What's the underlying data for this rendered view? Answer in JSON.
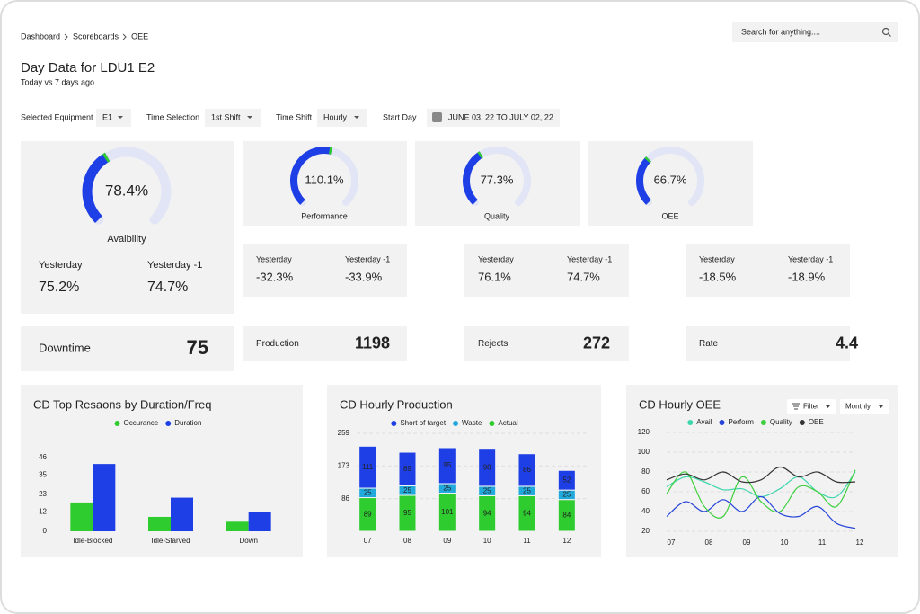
{
  "breadcrumb": [
    "Dashboard",
    "Scoreboards",
    "OEE"
  ],
  "search_placeholder": "Search for anything....",
  "title": "Day Data for LDU1 E2",
  "subtitle": "Today vs 7 days ago",
  "filters": [
    {
      "label": "Selected Equipment",
      "value": "E1"
    },
    {
      "label": "Time Selection",
      "value": "1st Shift"
    },
    {
      "label": "Time Shift",
      "value": "Hourly"
    },
    {
      "label": "Start Day",
      "value": "JUNE 03, 22 TO JULY 02, 22"
    }
  ],
  "gauges": [
    {
      "name": "Avaibility",
      "value": 78.4,
      "value_label": "78.4%",
      "comparison": [
        {
          "label": "Yesterday",
          "value": "75.2%"
        },
        {
          "label": "Yesterday -1",
          "value": "74.7%"
        }
      ]
    },
    {
      "name": "Performance",
      "value": 110.1,
      "value_label": "110.1%",
      "comparison": [
        {
          "label": "Yesterday",
          "value": "-32.3%"
        },
        {
          "label": "Yesterday -1",
          "value": "-33.9%"
        }
      ]
    },
    {
      "name": "Quality",
      "value": 77.3,
      "value_label": "77.3%",
      "comparison": [
        {
          "label": "Yesterday",
          "value": "76.1%"
        },
        {
          "label": "Yesterday -1",
          "value": "74.7%"
        }
      ]
    },
    {
      "name": "OEE",
      "value": 66.7,
      "value_label": "66.7%",
      "comparison": [
        {
          "label": "Yesterday",
          "value": "-18.5%"
        },
        {
          "label": "Yesterday -1",
          "value": "-18.9%"
        }
      ]
    }
  ],
  "kpis": [
    {
      "label": "Downtime",
      "value": 75
    },
    {
      "label": "Production",
      "value": 1198
    },
    {
      "label": "Rejects",
      "value": 272
    },
    {
      "label": "Rate",
      "value": 4.4
    }
  ],
  "chart_data": [
    {
      "type": "bar",
      "title": "CD Top Resaons by Duration/Freq",
      "categories": [
        "Idle-Blocked",
        "Idle-Starved",
        "Down"
      ],
      "series": [
        {
          "name": "Occurance",
          "color": "#2ecc2e",
          "values": [
            18,
            9,
            6
          ]
        },
        {
          "name": "Duration",
          "color": "#1f3fe6",
          "values": [
            42,
            21,
            12
          ]
        }
      ],
      "ylim": [
        0,
        46
      ],
      "yticks": [
        0,
        12,
        23,
        35,
        46
      ],
      "grid": false
    },
    {
      "type": "stacked_bar",
      "title": "CD Hourly Production",
      "categories": [
        "07",
        "08",
        "09",
        "10",
        "11",
        "12"
      ],
      "series": [
        {
          "name": "Short of target",
          "color": "#1f3fe6",
          "values": [
            111,
            89,
            95,
            98,
            86,
            52
          ]
        },
        {
          "name": "Waste",
          "color": "#22a9dc",
          "values": [
            25,
            25,
            25,
            25,
            25,
            25
          ]
        },
        {
          "name": "Actual",
          "color": "#2ecc2e",
          "values": [
            89,
            95,
            101,
            94,
            94,
            84
          ]
        }
      ],
      "ylim": [
        0,
        259
      ],
      "yticks": [
        86,
        173,
        259
      ],
      "grid": true
    },
    {
      "type": "line",
      "title": "CD Hourly OEE",
      "controls": [
        "Filter",
        "Monthly"
      ],
      "categories": [
        "07",
        null,
        "08",
        null,
        "09",
        null,
        "10",
        null,
        "11",
        null,
        "12"
      ],
      "series": [
        {
          "name": "Avail",
          "color": "#3fd6ad",
          "values": [
            65,
            75,
            70,
            62,
            63,
            55,
            63,
            75,
            60,
            55,
            80
          ]
        },
        {
          "name": "Perform",
          "color": "#2445d8",
          "values": [
            35,
            50,
            40,
            52,
            40,
            55,
            38,
            35,
            45,
            28,
            23
          ]
        },
        {
          "name": "Quality",
          "color": "#3ccf3c",
          "values": [
            58,
            80,
            45,
            35,
            75,
            50,
            40,
            65,
            60,
            45,
            82
          ]
        },
        {
          "name": "OEE",
          "color": "#333333",
          "values": [
            72,
            78,
            72,
            80,
            70,
            72,
            85,
            75,
            80,
            70,
            70
          ]
        }
      ],
      "ylim": [
        20,
        120
      ],
      "yticks": [
        20,
        40,
        60,
        80,
        100,
        120
      ],
      "grid": true
    }
  ]
}
